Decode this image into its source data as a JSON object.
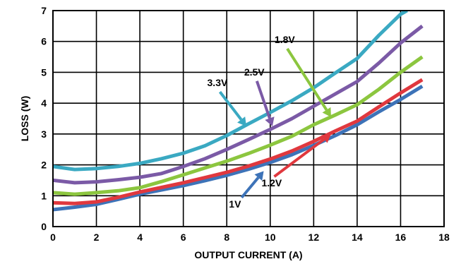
{
  "chart_data": {
    "type": "line",
    "title": "",
    "xlabel": "OUTPUT CURRENT (A)",
    "ylabel": "LOSS (W)",
    "xlim": [
      0,
      18
    ],
    "ylim": [
      0,
      7
    ],
    "xticks": [
      "0",
      "2",
      "4",
      "6",
      "8",
      "10",
      "12",
      "14",
      "16",
      "18"
    ],
    "yticks": [
      "0",
      "1",
      "2",
      "3",
      "4",
      "5",
      "6",
      "7"
    ],
    "grid": true,
    "legend": "none",
    "series": [
      {
        "name": "1V",
        "color": "#3d73b8",
        "x": [
          0,
          1,
          2,
          3,
          4,
          5,
          6,
          7,
          8,
          9,
          10,
          11,
          12,
          13,
          14,
          15,
          16,
          17
        ],
        "y": [
          0.55,
          0.63,
          0.72,
          0.88,
          1.05,
          1.19,
          1.33,
          1.49,
          1.66,
          1.86,
          2.08,
          2.33,
          2.63,
          2.95,
          3.3,
          3.72,
          4.12,
          4.55
        ]
      },
      {
        "name": "1.2V",
        "color": "#e0383e",
        "x": [
          0,
          1,
          2,
          3,
          4,
          5,
          6,
          7,
          8,
          9,
          10,
          11,
          12,
          13,
          14,
          15,
          16,
          17
        ],
        "y": [
          0.77,
          0.75,
          0.8,
          0.95,
          1.12,
          1.27,
          1.42,
          1.59,
          1.76,
          1.96,
          2.19,
          2.45,
          2.76,
          3.1,
          3.42,
          3.88,
          4.33,
          4.76
        ]
      },
      {
        "name": "1.8V",
        "color": "#8cc63f",
        "x": [
          0,
          1,
          2,
          3,
          4,
          5,
          6,
          7,
          8,
          9,
          10,
          11,
          12,
          13,
          14,
          15,
          16,
          17
        ],
        "y": [
          1.1,
          1.05,
          1.1,
          1.16,
          1.26,
          1.46,
          1.68,
          1.9,
          2.12,
          2.37,
          2.64,
          2.93,
          3.3,
          3.62,
          3.95,
          4.45,
          5.0,
          5.5
        ]
      },
      {
        "name": "2.5V",
        "color": "#7b5aa6",
        "x": [
          0,
          1,
          2,
          3,
          4,
          5,
          6,
          7,
          8,
          9,
          10,
          11,
          12,
          13,
          14,
          15,
          16,
          17
        ],
        "y": [
          1.5,
          1.42,
          1.45,
          1.52,
          1.6,
          1.72,
          1.95,
          2.2,
          2.5,
          2.82,
          3.15,
          3.5,
          3.9,
          4.3,
          4.7,
          5.3,
          5.95,
          6.5
        ]
      },
      {
        "name": "3.3V",
        "color": "#3aa9c2",
        "x": [
          0,
          1,
          2,
          3,
          4,
          5,
          6,
          7,
          8,
          9,
          10,
          11,
          12,
          13,
          14,
          15,
          16,
          16.3
        ],
        "y": [
          1.95,
          1.85,
          1.88,
          1.95,
          2.05,
          2.2,
          2.38,
          2.62,
          2.95,
          3.33,
          3.7,
          4.08,
          4.5,
          4.98,
          5.45,
          6.2,
          6.88,
          7.0
        ]
      }
    ],
    "annotations": [
      {
        "label": "3.3V",
        "series": "3.3V",
        "text_x": 7.1,
        "text_y": 4.55,
        "tip_x": 8.9,
        "tip_y": 3.25
      },
      {
        "label": "2.5V",
        "series": "2.5V",
        "text_x": 8.8,
        "text_y": 4.9,
        "tip_x": 10.1,
        "tip_y": 3.25
      },
      {
        "label": "1.8V",
        "series": "1.8V",
        "text_x": 10.2,
        "text_y": 5.95,
        "tip_x": 12.8,
        "tip_y": 3.55
      },
      {
        "label": "1.2V",
        "series": "1.2V",
        "text_x": 9.6,
        "text_y": 1.3,
        "tip_x": 12.8,
        "tip_y": 3.0
      },
      {
        "label": "1V",
        "series": "1V",
        "text_x": 8.1,
        "text_y": 0.62,
        "tip_x": 9.7,
        "tip_y": 1.8
      }
    ]
  }
}
